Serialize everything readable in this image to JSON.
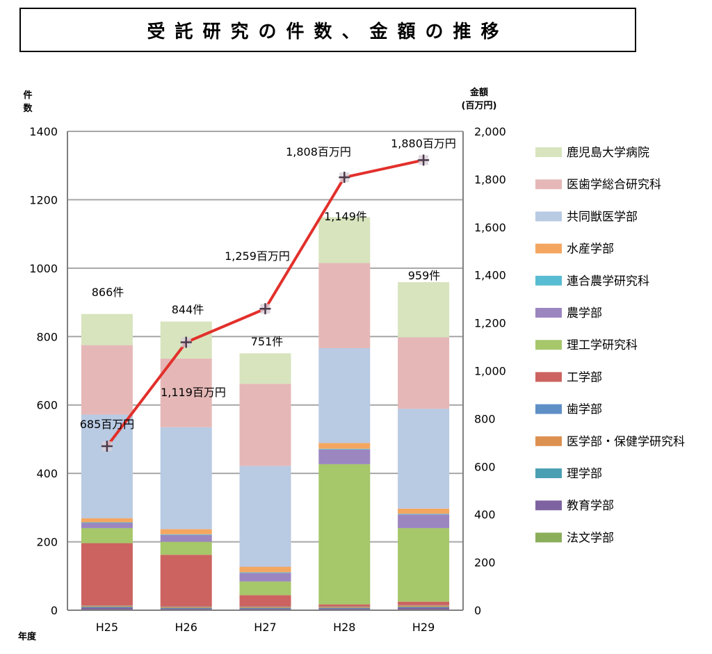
{
  "title": "受託研究の件数、金額の推移",
  "axes": {
    "left_unit_line1": "件",
    "left_unit_line2": "数",
    "right_unit_line1": "金額",
    "right_unit_line2": "(百万円)",
    "x_axis_label": "年度"
  },
  "chart_data": {
    "type": "bar",
    "categories": [
      "H25",
      "H26",
      "H27",
      "H28",
      "H29"
    ],
    "ylim": [
      0,
      1400
    ],
    "y_ticks": [
      0,
      200,
      400,
      600,
      800,
      1000,
      1200,
      1400
    ],
    "y2lim": [
      0,
      2000
    ],
    "y2_ticks": [
      0,
      200,
      400,
      600,
      800,
      1000,
      1200,
      1400,
      1600,
      1800,
      2000
    ],
    "y2_tick_labels": [
      "0",
      "200",
      "400",
      "600",
      "800",
      "1,000",
      "1,200",
      "1,400",
      "1,600",
      "1,800",
      "2,000"
    ],
    "grid": true,
    "legend_position": "right",
    "stacked": true,
    "series": [
      {
        "name": "法文学部",
        "color": "#8bae5b",
        "values": [
          2,
          2,
          2,
          2,
          2
        ]
      },
      {
        "name": "教育学部",
        "color": "#7d64a0",
        "values": [
          6,
          3,
          3,
          3,
          6
        ]
      },
      {
        "name": "理学部",
        "color": "#4aa0b2",
        "values": [
          2,
          2,
          2,
          2,
          2
        ]
      },
      {
        "name": "医学部・保健学研究科",
        "color": "#dd9150",
        "values": [
          3,
          3,
          3,
          3,
          4
        ]
      },
      {
        "name": "歯学部",
        "color": "#5f8fc7",
        "values": [
          1,
          1,
          1,
          1,
          1
        ]
      },
      {
        "name": "工学部",
        "color": "#cc6360",
        "values": [
          182,
          151,
          33,
          6,
          10
        ]
      },
      {
        "name": "理工学研究科",
        "color": "#a6c76a",
        "values": [
          44,
          38,
          40,
          410,
          215
        ]
      },
      {
        "name": "農学部",
        "color": "#9c86c0",
        "values": [
          15,
          20,
          25,
          43,
          40
        ]
      },
      {
        "name": "連合農学研究科",
        "color": "#58bcd2",
        "values": [
          2,
          2,
          2,
          2,
          2
        ]
      },
      {
        "name": "水産学部",
        "color": "#f4a661",
        "values": [
          12,
          15,
          16,
          17,
          15
        ]
      },
      {
        "name": "共同獣医学部",
        "color": "#b9cae3",
        "values": [
          303,
          298,
          295,
          277,
          292
        ]
      },
      {
        "name": "医歯学総合研究科",
        "color": "#e5b8b7",
        "values": [
          203,
          201,
          240,
          249,
          209
        ]
      },
      {
        "name": "鹿児島大学病院",
        "color": "#d7e4bd",
        "values": [
          91,
          108,
          89,
          134,
          161
        ]
      }
    ],
    "totals": [
      866,
      844,
      751,
      1149,
      959
    ],
    "total_labels": [
      "866件",
      "844件",
      "751件",
      "1,149件",
      "959件"
    ],
    "amount_series": {
      "color": "#e2302b",
      "values": [
        685,
        1119,
        1259,
        1808,
        1880
      ],
      "labels": [
        "685百万円",
        "1,119百万円",
        "1,259百万円",
        "1,808百万円",
        "1,880百万円"
      ]
    }
  }
}
